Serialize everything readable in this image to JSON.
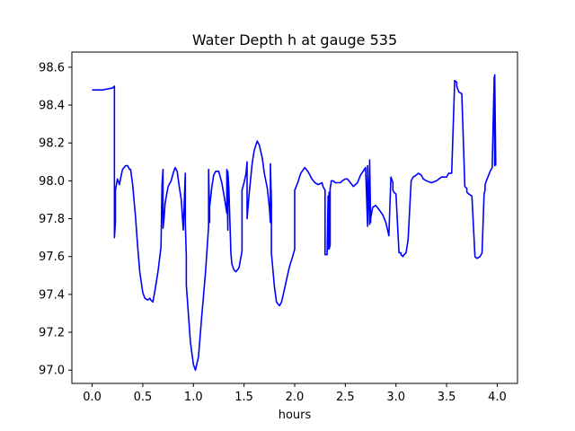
{
  "chart_data": {
    "type": "line",
    "title": "Water Depth h at gauge 535",
    "xlabel": "hours",
    "ylabel": "",
    "xlim": [
      -0.2,
      4.2
    ],
    "ylim": [
      96.93,
      98.68
    ],
    "xticks": [
      0.0,
      0.5,
      1.0,
      1.5,
      2.0,
      2.5,
      3.0,
      3.5,
      4.0
    ],
    "xtick_labels": [
      "0.0",
      "0.5",
      "1.0",
      "1.5",
      "2.0",
      "2.5",
      "3.0",
      "3.5",
      "4.0"
    ],
    "yticks": [
      97.0,
      97.2,
      97.4,
      97.6,
      97.8,
      98.0,
      98.2,
      98.4,
      98.6
    ],
    "ytick_labels": [
      "97.0",
      "97.2",
      "97.4",
      "97.6",
      "97.8",
      "98.0",
      "98.2",
      "98.4",
      "98.6"
    ],
    "grid": false,
    "series": [
      {
        "color": "#0000ff",
        "x": [
          0.0,
          0.1,
          0.15,
          0.2,
          0.22,
          0.22,
          0.22,
          0.23,
          0.23,
          0.25,
          0.27,
          0.28,
          0.3,
          0.33,
          0.35,
          0.37,
          0.38,
          0.4,
          0.43,
          0.45,
          0.47,
          0.5,
          0.52,
          0.55,
          0.57,
          0.58,
          0.6,
          0.62,
          0.65,
          0.68,
          0.69,
          0.7,
          0.7,
          0.71,
          0.72,
          0.75,
          0.78,
          0.8,
          0.82,
          0.84,
          0.86,
          0.88,
          0.9,
          0.92,
          0.92,
          0.93,
          0.93,
          0.95,
          0.97,
          1.0,
          1.02,
          1.05,
          1.08,
          1.12,
          1.15,
          1.15,
          1.16,
          1.16,
          1.18,
          1.2,
          1.22,
          1.25,
          1.28,
          1.3,
          1.33,
          1.33,
          1.34,
          1.34,
          1.35,
          1.37,
          1.38,
          1.4,
          1.42,
          1.45,
          1.48,
          1.48,
          1.5,
          1.52,
          1.53,
          1.53,
          1.55,
          1.58,
          1.6,
          1.63,
          1.65,
          1.68,
          1.7,
          1.73,
          1.75,
          1.76,
          1.76,
          1.77,
          1.77,
          1.8,
          1.82,
          1.85,
          1.87,
          1.9,
          1.92,
          1.95,
          1.98,
          2.0,
          2.0,
          2.03,
          2.06,
          2.1,
          2.13,
          2.17,
          2.2,
          2.23,
          2.27,
          2.28,
          2.3,
          2.3,
          2.32,
          2.33,
          2.33,
          2.34,
          2.34,
          2.35,
          2.35,
          2.36,
          2.36,
          2.38,
          2.4,
          2.45,
          2.47,
          2.5,
          2.52,
          2.55,
          2.58,
          2.62,
          2.65,
          2.7,
          2.72,
          2.72,
          2.74,
          2.74,
          2.75,
          2.75,
          2.77,
          2.8,
          2.83,
          2.87,
          2.9,
          2.93,
          2.95,
          2.97,
          2.97,
          2.98,
          3.0,
          3.03,
          3.05,
          3.05,
          3.07,
          3.08,
          3.1,
          3.12,
          3.15,
          3.17,
          3.2,
          3.2,
          3.22,
          3.25,
          3.27,
          3.3,
          3.35,
          3.4,
          3.45,
          3.48,
          3.5,
          3.52,
          3.55,
          3.58,
          3.6,
          3.6,
          3.62,
          3.65,
          3.68,
          3.7,
          3.7,
          3.72,
          3.75,
          3.78,
          3.8,
          3.8,
          3.83,
          3.85,
          3.87,
          3.88,
          3.88,
          3.9,
          3.93,
          3.95,
          3.97,
          3.975,
          3.975,
          3.985,
          3.985,
          3.99,
          4.0
        ]
      }
    ]
  }
}
